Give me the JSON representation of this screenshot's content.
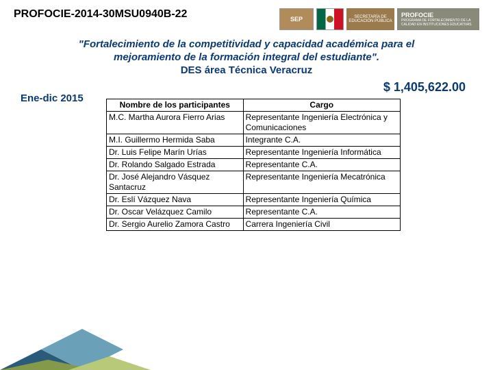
{
  "header": {
    "code": "PROFOCIE-2014-30MSU0940B-22",
    "logos": {
      "sep": "SEP",
      "sep_sub": "SECRETARÍA DE EDUCACIÓN PÚBLICA",
      "profocie": "PROFOCIE",
      "profocie_sub": "PROGRAMA DE FORTALECIMIENTO DE LA CALIDAD EN INSTITUCIONES EDUCATIVAS"
    }
  },
  "title": {
    "line1": "\"Fortalecimiento de la competitividad y capacidad académica para el",
    "line2": "mejoramiento de la formación integral del estudiante\".",
    "line3": "DES área Técnica Veracruz"
  },
  "period": "Ene-dic 2015",
  "amount": "$ 1,405,622.00",
  "table": {
    "header_name": "Nombre de los participantes",
    "header_role": "Cargo",
    "rows": [
      {
        "name": "M.C. Martha Aurora Fierro Arias",
        "role": "Representante Ingeniería Electrónica y Comunicaciones"
      },
      {
        "name": "M.I. Guillermo Hermida Saba",
        "role": "Integrante C.A."
      },
      {
        "name": "Dr. Luis Felipe Marín Urías",
        "role": "Representante Ingeniería Informática"
      },
      {
        "name": "Dr. Rolando Salgado Estrada",
        "role": "Representante C.A."
      },
      {
        "name": "Dr. José Alejandro Vásquez Santacruz",
        "role": "Representante Ingeniería Mecatrónica"
      },
      {
        "name": "Dr. Eslí Vázquez Nava",
        "role": "Representante Ingeniería Química"
      },
      {
        "name": "Dr. Oscar Velázquez Camilo",
        "role": "Representante C.A."
      },
      {
        "name": "Dr. Sergio Aurelio Zamora Castro",
        "role": "Carrera Ingeniería Civil"
      }
    ],
    "col_widths": {
      "name": 200,
      "role": 230
    }
  },
  "footer": {
    "colors": {
      "c1": "#2a5b7a",
      "c2": "#6aa0b8",
      "c3": "#849a4a",
      "c4": "#b8c97a"
    }
  }
}
